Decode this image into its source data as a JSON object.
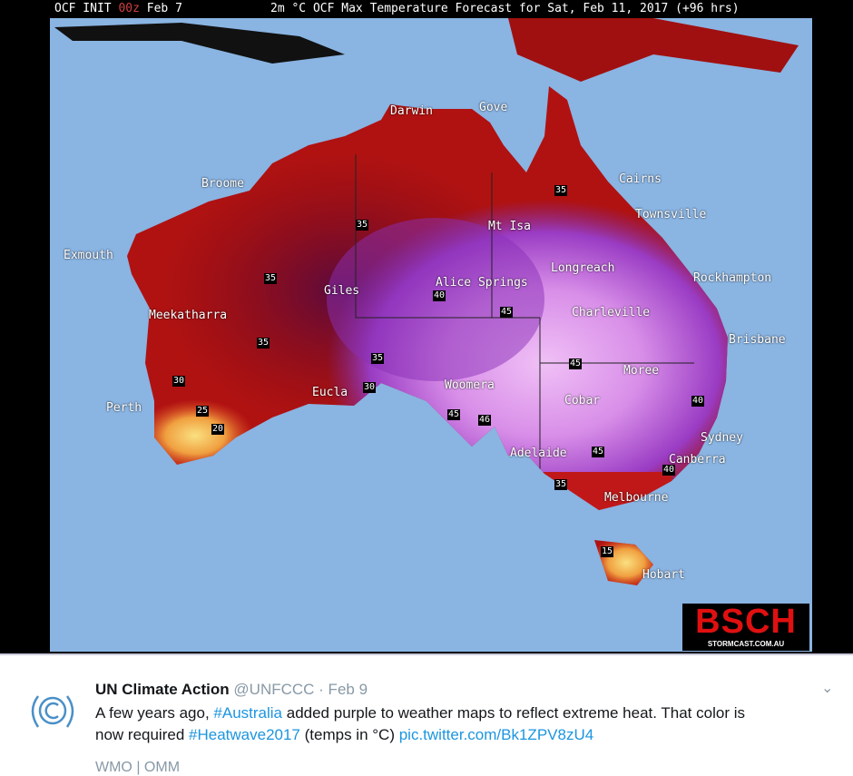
{
  "map": {
    "header_left_prefix": "OCF INIT ",
    "header_left_init": "00z",
    "header_left_date": " Feb 7",
    "header_title": "2m °C OCF Max Temperature Forecast for Sat, Feb 11, 2017 (+96 hrs)",
    "colors": {
      "ocean": "#8ab4e2",
      "hot_red": "#b01212",
      "dark_red": "#6e0a14",
      "purple": "#8a30b8",
      "light_purple": "#eaa6f2",
      "orange": "#e87020",
      "yellow": "#f8d060"
    },
    "cities": [
      "Darwin",
      "Gove",
      "Broome",
      "Cairns",
      "Townsville",
      "Mt Isa",
      "Exmouth",
      "Longreach",
      "Rockhampton",
      "Giles",
      "Alice Springs",
      "Charleville",
      "Meekatharra",
      "Brisbane",
      "Moree",
      "Eucla",
      "Woomera",
      "Cobar",
      "Perth",
      "Sydney",
      "Adelaide",
      "Canberra",
      "Melbourne",
      "Hobart"
    ],
    "contour_labels": [
      "35",
      "35",
      "35",
      "35",
      "40",
      "45",
      "45",
      "35",
      "30",
      "30",
      "25",
      "20",
      "45",
      "46",
      "45",
      "40",
      "40",
      "35",
      "15"
    ],
    "logo_text": "BSCH",
    "logo_sub": "STORMCAST.COM.AU"
  },
  "tweet": {
    "author": "UN Climate Action",
    "handle": "@UNFCCC",
    "date": "· Feb 9",
    "text_1": "A few years ago, ",
    "hashtag_1": "#Australia",
    "text_2": " added purple to weather maps to reflect extreme heat. That color is",
    "text_3": "now required ",
    "hashtag_2": "#Heatwave2017",
    "text_4": " (temps in °C) ",
    "pic_link": "pic.twitter.com/Bk1ZPV8zU4",
    "footer": "WMO | OMM",
    "menu_icon": "chevron-down-icon"
  }
}
